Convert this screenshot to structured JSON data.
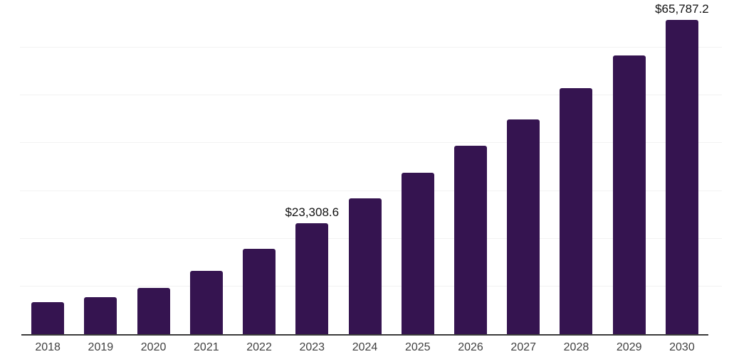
{
  "chart_data": {
    "type": "bar",
    "title": "",
    "xlabel": "",
    "ylabel": "",
    "categories": [
      "2018",
      "2019",
      "2020",
      "2021",
      "2022",
      "2023",
      "2024",
      "2025",
      "2026",
      "2027",
      "2028",
      "2029",
      "2030"
    ],
    "values": [
      6700,
      7800,
      9700,
      13300,
      17900,
      23308.6,
      28400,
      33800,
      39400,
      45000,
      51500,
      58400,
      65787.2
    ],
    "data_labels": [
      {
        "category": "2023",
        "text": "$23,308.6"
      },
      {
        "category": "2030",
        "text": "$65,787.2"
      }
    ],
    "ylim": [
      0,
      70000
    ],
    "gridline_interval": 10000,
    "grid": true,
    "legend": false,
    "y_axis_labels_visible": false,
    "bar_color": "#351450"
  },
  "colors": {
    "bar": "#351450",
    "axis_line": "#3b3b3b",
    "gridline": "#f2f2f2",
    "tick_label": "#3f3f3f",
    "data_label": "#111111",
    "background": "#ffffff"
  }
}
